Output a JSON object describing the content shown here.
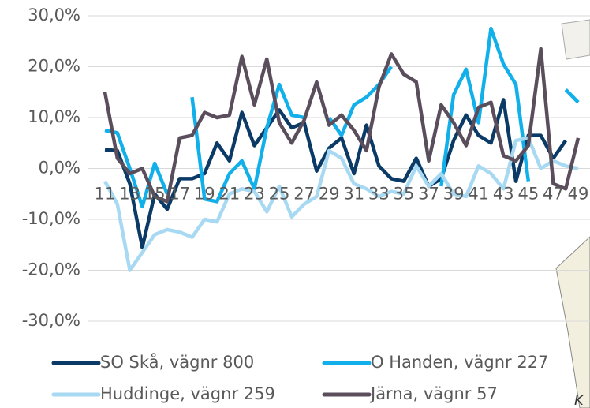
{
  "chart_data": {
    "type": "line",
    "categories": [
      "11",
      null,
      "13",
      null,
      "15",
      null,
      "17",
      null,
      "19",
      null,
      "21",
      null,
      "23",
      null,
      "25",
      null,
      "27",
      null,
      "29",
      null,
      "31",
      null,
      "33",
      null,
      "35",
      null,
      "37",
      null,
      "39",
      null,
      "41",
      null,
      "43",
      null,
      "45",
      null,
      "47",
      null,
      "49"
    ],
    "series": [
      {
        "name": "SO Skå, vägnr 800",
        "color": "#0b3a66",
        "values": [
          3.7,
          3.5,
          -3,
          -15.5,
          -5,
          -8,
          -2,
          -2,
          -1,
          5,
          1.5,
          11,
          4.5,
          8,
          11.5,
          8,
          9,
          -0.5,
          4,
          6,
          -1,
          8.5,
          0.5,
          -2,
          -2.5,
          2,
          -3.5,
          -2,
          5.5,
          10.5,
          6.5,
          5,
          13.5,
          -2.5,
          6.5,
          6.5,
          2,
          5.5,
          null
        ]
      },
      {
        "name": "O Handen, vägnr 227",
        "color": "#12b0ea",
        "values": [
          7.5,
          7,
          0,
          -7.5,
          1,
          -5,
          null,
          14,
          -6,
          -6.5,
          -1,
          1.5,
          -4,
          8,
          16.5,
          10.5,
          10,
          null,
          10,
          6.5,
          12.5,
          14,
          16.5,
          20,
          null,
          null,
          null,
          -3.5,
          14.5,
          19.5,
          9,
          27.5,
          20.5,
          16.5,
          -2.5,
          null,
          null,
          15.5,
          13
        ]
      },
      {
        "name": "Huddinge, vägnr 259",
        "color": "#a8d9f2",
        "values": [
          -2.5,
          -7,
          -20,
          -16.5,
          -13,
          -12,
          -12.5,
          -13.5,
          -10,
          -10.5,
          -5,
          -4,
          -4.5,
          -8.5,
          -3.5,
          -9.5,
          -7,
          -5.5,
          3.5,
          2,
          -3,
          -4,
          -5.5,
          -4.5,
          -5,
          0.5,
          -3.5,
          -1,
          -5,
          -5.5,
          0.5,
          -1,
          -4,
          5.5,
          6,
          0,
          1.5,
          0.5,
          0
        ]
      },
      {
        "name": "Järna, vägnr 57",
        "color": "#5a4e5c",
        "values": [
          15,
          2,
          -1,
          0,
          -5.5,
          -6.5,
          6,
          6.5,
          11,
          10,
          10.5,
          22,
          12.5,
          21.5,
          9,
          5,
          9.5,
          17,
          8.5,
          10.5,
          7.5,
          3.5,
          16,
          22.5,
          18.5,
          17,
          1.5,
          12.5,
          9,
          4.5,
          12,
          13,
          2.5,
          1.5,
          4.5,
          23.5,
          -3,
          -4,
          6
        ]
      }
    ],
    "ylim": [
      -30,
      30
    ],
    "yticks": [
      {
        "value": -30,
        "label": "-30,0%"
      },
      {
        "value": -20,
        "label": "-20,0%"
      },
      {
        "value": -10,
        "label": "-10,0%"
      },
      {
        "value": 0,
        "label": "0,0%"
      },
      {
        "value": 10,
        "label": "10,0%"
      },
      {
        "value": 20,
        "label": "20,0%"
      },
      {
        "value": 30,
        "label": "30,0%"
      }
    ],
    "grid": true
  },
  "background_text": "K"
}
